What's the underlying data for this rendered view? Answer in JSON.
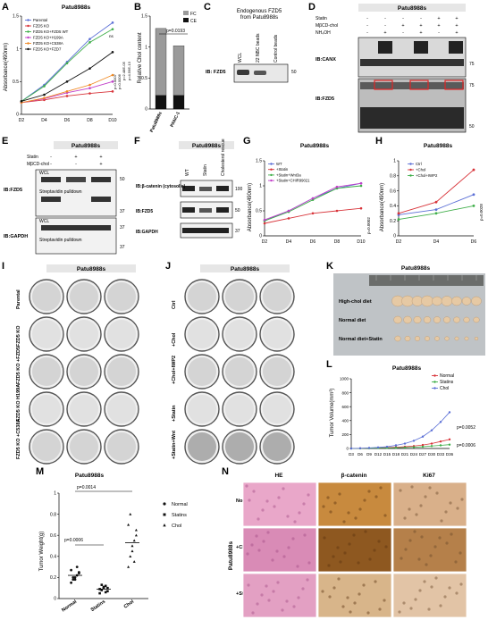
{
  "panels": {
    "A": {
      "letter": "A",
      "title": "Patu8988s",
      "ylabel": "Absorbance(490nm)",
      "legend": [
        "Parental",
        "FZD5 KO",
        "FZD5 KO+FZD5 WT",
        "FZD5 KO+H199A",
        "FZD5 KO+C538A",
        "FZD5 KO+FZD7"
      ],
      "stats": [
        "ns",
        "p=0.0007",
        "p=0.0006",
        "p=2.48E-05",
        "p=4.59E-13"
      ]
    },
    "B": {
      "letter": "B",
      "ylabel": "Relative Chol content",
      "legend": [
        "FC",
        "CE"
      ],
      "pvalue": "p=0.0193"
    },
    "C": {
      "letter": "C",
      "title_line1": "Endogenous FZD5",
      "title_line2": "from Patu8988s",
      "lanes": [
        "WCL",
        "22 NBC beads",
        "Control beads"
      ],
      "ib": "IB: FZD5",
      "mw": "50"
    },
    "D": {
      "letter": "D",
      "title": "Patu8988s",
      "rows": [
        "Statin",
        "MβCD-chol",
        "NH₄OH"
      ],
      "signs": [
        [
          "-",
          "-",
          "-",
          "-",
          "+",
          "+"
        ],
        [
          "-",
          "-",
          "+",
          "+",
          "+",
          "+"
        ],
        [
          "-",
          "+",
          "-",
          "+",
          "-",
          "+"
        ]
      ],
      "blots": [
        "IB:CANX",
        "IB:FZD5"
      ],
      "mw": [
        "75",
        "75",
        "50"
      ]
    },
    "E": {
      "letter": "E",
      "title": "Patu8988s",
      "rows": [
        "Statin",
        "MβCD-chol"
      ],
      "signs": [
        [
          "-",
          "+",
          "+"
        ],
        [
          "-",
          "-",
          "+"
        ]
      ],
      "labels": [
        "WCL",
        "Streptavidin pulldown",
        "WCL",
        "Streptavidin pulldown"
      ],
      "ib": [
        "IB:FZD5",
        "IB:GAPDH"
      ],
      "mw": [
        "50",
        "37",
        "37",
        "37"
      ]
    },
    "F": {
      "letter": "F",
      "title": "Patu8988s",
      "lanes": [
        "WT",
        "Statin",
        "Cholesterol rescue"
      ],
      "blots": [
        "IB:β-catenin (cytosolic)",
        "IB:FZD5",
        "IB:GAPDH"
      ],
      "mw": [
        "100",
        "50",
        "37"
      ]
    },
    "G": {
      "letter": "G",
      "title": "Patu8988s",
      "ylabel": "Absorbance(490nm)",
      "legend": [
        "WT",
        "+Statin",
        "+Statin+Wnt3a",
        "+Statin+CHIR99021"
      ],
      "pvalue": "p=0.0002"
    },
    "H": {
      "letter": "H",
      "title": "Patu8988s",
      "ylabel": "Absorbance(490nm)",
      "legend": [
        "Ctrl",
        "+Chol",
        "+Chol+IWP2"
      ],
      "pvalue": "p=0.0028"
    },
    "I": {
      "letter": "I",
      "title": "Patu8988s",
      "rows": [
        "Parental",
        "FZD5 KO",
        "FZD5 KO +FZD5",
        "FZD5 KO H199A",
        "FZD5 KO +C538A"
      ]
    },
    "J": {
      "letter": "J",
      "title": "Patu8988s",
      "rows": [
        "Ctrl",
        "+Chol",
        "+Chol+IWP2",
        "+Statin",
        "+Statin+Wnt"
      ]
    },
    "K": {
      "letter": "K",
      "title": "Patu8988s",
      "rows": [
        "High-chol diet",
        "Normal diet",
        "Normal diet+Statin"
      ]
    },
    "L": {
      "letter": "L",
      "title": "Patu8988s",
      "ylabel": "Tumor Volume(mm³)",
      "legend": [
        "Normal",
        "Statins",
        "Chol"
      ],
      "p1": "p=0.0052",
      "p2": "p=0.0006"
    },
    "M": {
      "letter": "M",
      "title": "Patu8988s",
      "ylabel": "Tumor Weight(g)",
      "legend": [
        "Normal",
        "Statins",
        "Chol"
      ],
      "p1": "p=0.0014",
      "p2": "p=0.0006"
    },
    "N": {
      "letter": "N",
      "cols": [
        "HE",
        "β-catenin",
        "Ki67"
      ],
      "rows": [
        "Normal",
        "+Chol",
        "+Statin"
      ],
      "side": "Patu8988s"
    }
  },
  "chart_data": [
    {
      "panel": "A",
      "type": "line",
      "x": [
        "D2",
        "D4",
        "D6",
        "D8",
        "D10"
      ],
      "ylim": [
        0,
        1.5
      ],
      "yticks": [
        0,
        0.5,
        1.0,
        1.5
      ],
      "series": [
        {
          "name": "Parental",
          "color": "#5b6fd6",
          "values": [
            0.2,
            0.45,
            0.8,
            1.15,
            1.4
          ]
        },
        {
          "name": "FZD5 KO",
          "color": "#d8343a",
          "values": [
            0.18,
            0.22,
            0.28,
            0.32,
            0.35
          ]
        },
        {
          "name": "FZD5 KO+FZD5 WT",
          "color": "#3fae49",
          "values": [
            0.2,
            0.43,
            0.78,
            1.1,
            1.3
          ]
        },
        {
          "name": "FZD5 KO+H199A",
          "color": "#c23fc9",
          "values": [
            0.18,
            0.24,
            0.33,
            0.4,
            0.5
          ]
        },
        {
          "name": "FZD5 KO+C538A",
          "color": "#f08a24",
          "values": [
            0.18,
            0.25,
            0.35,
            0.45,
            0.6
          ]
        },
        {
          "name": "FZD5 KO+FZD7",
          "color": "#111111",
          "values": [
            0.2,
            0.3,
            0.5,
            0.7,
            0.95
          ]
        }
      ]
    },
    {
      "panel": "B",
      "type": "bar",
      "categories": [
        "Patu8988s",
        "PANC-1"
      ],
      "ylim": [
        0,
        1.5
      ],
      "yticks": [
        0,
        0.5,
        1.0,
        1.5
      ],
      "series": [
        {
          "name": "FC",
          "color": "#9a9a9a",
          "values": [
            1.08,
            0.8
          ]
        },
        {
          "name": "CE",
          "color": "#111111",
          "values": [
            0.22,
            0.22
          ]
        }
      ]
    },
    {
      "panel": "G",
      "type": "line",
      "x": [
        "D2",
        "D4",
        "D6",
        "D8",
        "D10"
      ],
      "ylim": [
        0,
        1.5
      ],
      "yticks": [
        0,
        0.5,
        1.0,
        1.5
      ],
      "series": [
        {
          "name": "WT",
          "color": "#5b6fd6",
          "values": [
            0.3,
            0.5,
            0.75,
            0.95,
            1.05
          ]
        },
        {
          "name": "+Statin",
          "color": "#d8343a",
          "values": [
            0.25,
            0.35,
            0.45,
            0.5,
            0.55
          ]
        },
        {
          "name": "+Statin+Wnt3a",
          "color": "#3fae49",
          "values": [
            0.3,
            0.48,
            0.72,
            0.95,
            1.0
          ]
        },
        {
          "name": "+Statin+CHIR99021",
          "color": "#c23fc9",
          "values": [
            0.32,
            0.5,
            0.75,
            0.98,
            1.05
          ]
        }
      ]
    },
    {
      "panel": "H",
      "type": "line",
      "x": [
        "D2",
        "D4",
        "D6"
      ],
      "ylim": [
        0,
        1.0
      ],
      "yticks": [
        0,
        0.2,
        0.4,
        0.6,
        0.8,
        1.0
      ],
      "series": [
        {
          "name": "Ctrl",
          "color": "#5b6fd6",
          "values": [
            0.28,
            0.35,
            0.55
          ]
        },
        {
          "name": "+Chol",
          "color": "#d8343a",
          "values": [
            0.3,
            0.45,
            0.88
          ]
        },
        {
          "name": "+Chol+IWP2",
          "color": "#3fae49",
          "values": [
            0.22,
            0.3,
            0.4
          ]
        }
      ]
    },
    {
      "panel": "L",
      "type": "line",
      "x": [
        "D3",
        "D6",
        "D9",
        "D12",
        "D15",
        "D18",
        "D21",
        "D24",
        "D27",
        "D30",
        "D33",
        "D36"
      ],
      "ylim": [
        0,
        1000
      ],
      "yticks": [
        0,
        200,
        400,
        600,
        800,
        1000
      ],
      "series": [
        {
          "name": "Normal",
          "color": "#d8343a",
          "values": [
            0,
            2,
            5,
            8,
            12,
            18,
            25,
            35,
            50,
            70,
            100,
            130
          ]
        },
        {
          "name": "Statins",
          "color": "#3fae49",
          "values": [
            0,
            1,
            3,
            5,
            8,
            10,
            14,
            18,
            25,
            35,
            45,
            55
          ]
        },
        {
          "name": "Chol",
          "color": "#5b6fd6",
          "values": [
            0,
            3,
            8,
            15,
            25,
            45,
            70,
            110,
            170,
            260,
            380,
            520
          ]
        }
      ]
    },
    {
      "panel": "M",
      "type": "scatter",
      "categories": [
        "Normal",
        "Statins",
        "Chol"
      ],
      "ylim": [
        0,
        1.0
      ],
      "yticks": [
        0,
        0.2,
        0.4,
        0.6,
        0.8,
        1.0
      ],
      "series": [
        {
          "name": "Normal",
          "values": [
            0.15,
            0.18,
            0.2,
            0.22,
            0.25,
            0.27,
            0.2,
            0.18,
            0.3,
            0.24
          ]
        },
        {
          "name": "Statins",
          "values": [
            0.05,
            0.08,
            0.1,
            0.12,
            0.07,
            0.09,
            0.13,
            0.11,
            0.06,
            0.1
          ]
        },
        {
          "name": "Chol",
          "values": [
            0.3,
            0.4,
            0.45,
            0.55,
            0.6,
            0.7,
            0.8,
            0.5,
            0.35,
            0.65
          ]
        }
      ],
      "means": [
        0.22,
        0.09,
        0.53
      ]
    }
  ]
}
